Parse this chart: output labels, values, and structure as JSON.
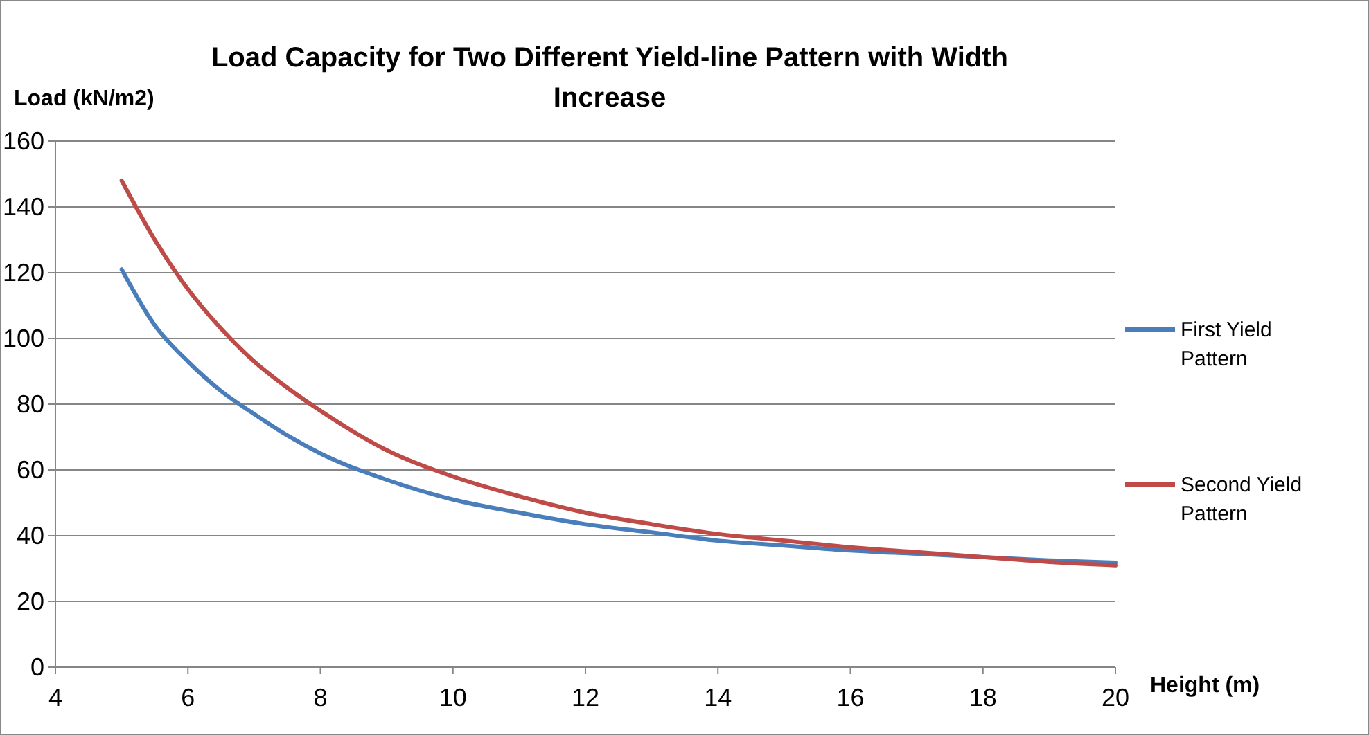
{
  "chart_data": {
    "type": "line",
    "title": "Load Capacity for Two Different Yield-line Pattern with Width Increase",
    "xlabel": "Height (m)",
    "ylabel": "Load (kN/m2)",
    "xlim": [
      4,
      20
    ],
    "xticks": [
      4,
      6,
      8,
      10,
      12,
      14,
      16,
      18,
      20
    ],
    "ylim": [
      0,
      160
    ],
    "yticks": [
      0,
      20,
      40,
      60,
      80,
      100,
      120,
      140,
      160
    ],
    "grid": "y",
    "legend": "right",
    "marker": "none",
    "line_style": "solid",
    "series": [
      {
        "name": "First Yield Pattern",
        "color": "#4a7ebb",
        "x": [
          5,
          5.5,
          6,
          6.5,
          7,
          7.5,
          8,
          9,
          10,
          11,
          12,
          13,
          14,
          15,
          16,
          17,
          18,
          19,
          20
        ],
        "values": [
          121,
          104,
          93,
          84,
          77,
          70.5,
          65,
          57,
          51,
          47,
          43.5,
          41,
          38.5,
          37,
          35.5,
          34.5,
          33.5,
          32.5,
          31.8
        ]
      },
      {
        "name": "Second Yield Pattern",
        "color": "#be4b48",
        "x": [
          5,
          5.5,
          6,
          6.5,
          7,
          7.5,
          8,
          9,
          10,
          11,
          12,
          13,
          14,
          15,
          16,
          17,
          18,
          19,
          20
        ],
        "values": [
          148,
          130,
          115,
          103,
          93,
          85,
          78,
          66,
          58,
          52,
          47,
          43.5,
          40.5,
          38.5,
          36.5,
          35,
          33.5,
          32,
          31
        ]
      }
    ]
  }
}
